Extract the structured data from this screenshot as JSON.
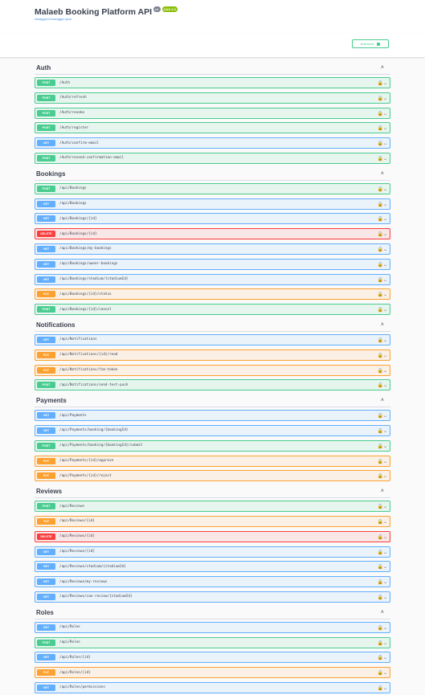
{
  "header": {
    "title": "Malaeb Booking Platform API",
    "version": "v1",
    "oas": "OAS 3.0",
    "url": "/swagger/v1/swagger.json"
  },
  "authorize": "Authorize",
  "sections": [
    {
      "name": "Auth",
      "operations": [
        {
          "method": "POST",
          "path": "/Auth"
        },
        {
          "method": "POST",
          "path": "/Auth/refresh"
        },
        {
          "method": "POST",
          "path": "/Auth/revoke"
        },
        {
          "method": "POST",
          "path": "/Auth/register"
        },
        {
          "method": "GET",
          "path": "/Auth/confirm-email"
        },
        {
          "method": "POST",
          "path": "/Auth/resend-confirmation-email"
        }
      ]
    },
    {
      "name": "Bookings",
      "operations": [
        {
          "method": "POST",
          "path": "/api/Bookings"
        },
        {
          "method": "GET",
          "path": "/api/Bookings"
        },
        {
          "method": "GET",
          "path": "/api/Bookings/{id}"
        },
        {
          "method": "DELETE",
          "path": "/api/Bookings/{id}"
        },
        {
          "method": "GET",
          "path": "/api/Bookings/my-bookings"
        },
        {
          "method": "GET",
          "path": "/api/Bookings/owner-bookings"
        },
        {
          "method": "GET",
          "path": "/api/Bookings/stadium/{stadiumId}"
        },
        {
          "method": "PUT",
          "path": "/api/Bookings/{id}/status"
        },
        {
          "method": "POST",
          "path": "/api/Bookings/{id}/cancel"
        }
      ]
    },
    {
      "name": "Notifications",
      "operations": [
        {
          "method": "GET",
          "path": "/api/Notifications"
        },
        {
          "method": "PUT",
          "path": "/api/Notifications/{id}/read"
        },
        {
          "method": "PUT",
          "path": "/api/Notifications/fcm-token"
        },
        {
          "method": "POST",
          "path": "/api/Notifications/send-test-push"
        }
      ]
    },
    {
      "name": "Payments",
      "operations": [
        {
          "method": "GET",
          "path": "/api/Payments"
        },
        {
          "method": "GET",
          "path": "/api/Payments/booking/{bookingId}"
        },
        {
          "method": "POST",
          "path": "/api/Payments/booking/{bookingId}/submit"
        },
        {
          "method": "PUT",
          "path": "/api/Payments/{id}/approve"
        },
        {
          "method": "PUT",
          "path": "/api/Payments/{id}/reject"
        }
      ]
    },
    {
      "name": "Reviews",
      "operations": [
        {
          "method": "POST",
          "path": "/api/Reviews"
        },
        {
          "method": "PUT",
          "path": "/api/Reviews/{id}"
        },
        {
          "method": "DELETE",
          "path": "/api/Reviews/{id}"
        },
        {
          "method": "GET",
          "path": "/api/Reviews/{id}"
        },
        {
          "method": "GET",
          "path": "/api/Reviews/stadium/{stadiumId}"
        },
        {
          "method": "GET",
          "path": "/api/Reviews/my-reviews"
        },
        {
          "method": "GET",
          "path": "/api/Reviews/can-review/{stadiumId}"
        }
      ]
    },
    {
      "name": "Roles",
      "operations": [
        {
          "method": "GET",
          "path": "/api/Roles"
        },
        {
          "method": "POST",
          "path": "/api/Roles"
        },
        {
          "method": "GET",
          "path": "/api/Roles/{id}"
        },
        {
          "method": "PUT",
          "path": "/api/Roles/{id}"
        },
        {
          "method": "GET",
          "path": "/api/Roles/permissions"
        }
      ]
    }
  ]
}
